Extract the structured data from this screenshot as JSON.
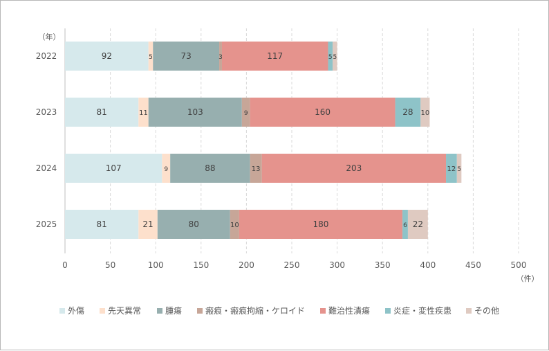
{
  "chart_data": {
    "type": "bar",
    "orientation": "horizontal",
    "stacked": true,
    "categories": [
      "2022",
      "2023",
      "2024",
      "2025"
    ],
    "category_unit_label": "（年）",
    "value_unit_label": "（件）",
    "xlim": [
      0,
      500
    ],
    "x_ticks": [
      0,
      50,
      100,
      150,
      200,
      250,
      300,
      350,
      400,
      450,
      500
    ],
    "grid": "vertical dashed",
    "legend_position": "bottom",
    "series": [
      {
        "name": "外傷",
        "color": "#d6e9ec",
        "values": [
          92,
          81,
          107,
          81
        ]
      },
      {
        "name": "先天異常",
        "color": "#fde0cc",
        "values": [
          5,
          11,
          9,
          21
        ]
      },
      {
        "name": "腫瘍",
        "color": "#97afaf",
        "values": [
          73,
          103,
          88,
          80
        ]
      },
      {
        "name": "瘢痕・瘢痕拘縮・ケロイド",
        "color": "#c7a698",
        "values": [
          3,
          9,
          13,
          10
        ]
      },
      {
        "name": "難治性潰瘍",
        "color": "#e5938d",
        "values": [
          117,
          160,
          203,
          180
        ]
      },
      {
        "name": "炎症・変性疾患",
        "color": "#8ec3c8",
        "values": [
          5,
          28,
          12,
          6
        ]
      },
      {
        "name": "その他",
        "color": "#dfcac1",
        "values": [
          5,
          10,
          5,
          22
        ]
      }
    ]
  }
}
